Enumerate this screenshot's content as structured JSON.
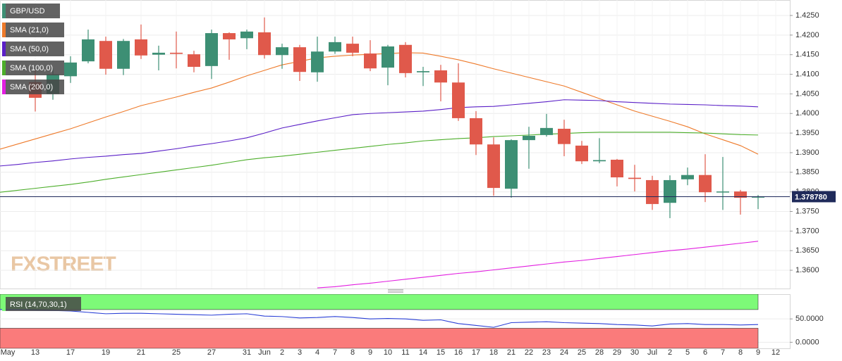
{
  "chart_data": [
    {
      "type": "candlestick",
      "title": "GBP/USD",
      "watermark": "FXSTREET",
      "categories": [
        "May",
        null,
        "13",
        null,
        "17",
        null,
        "19",
        null,
        "21",
        null,
        "25",
        null,
        "27",
        null,
        "31",
        "Jun",
        "2",
        "3",
        "4",
        "7",
        "8",
        "9",
        "10",
        "11",
        "14",
        "15",
        "16",
        "17",
        "18",
        "21",
        "22",
        "23",
        "24",
        "25",
        "28",
        "29",
        "30",
        "Jul",
        "2",
        "5",
        "6",
        "7",
        "8",
        "9",
        "12"
      ],
      "open": [
        null,
        null,
        1.408,
        1.405,
        1.4095,
        1.4133,
        1.4185,
        1.4114,
        1.4189,
        1.415,
        1.4155,
        1.4151,
        1.4121,
        1.4205,
        1.4192,
        1.4207,
        1.4149,
        1.4169,
        1.4105,
        1.4158,
        1.4178,
        1.4153,
        1.4117,
        1.4175,
        1.4105,
        1.411,
        1.4079,
        1.3988,
        1.3921,
        1.3808,
        1.3932,
        1.3945,
        1.3961,
        1.3918,
        1.3878,
        1.3882,
        1.3836,
        1.383,
        1.3772,
        1.3832,
        1.3843,
        1.3799,
        1.3801,
        1.3786,
        null
      ],
      "high": [
        null,
        null,
        1.411,
        1.4115,
        1.4146,
        1.4214,
        1.4196,
        1.419,
        1.4227,
        1.4173,
        1.4209,
        1.416,
        1.4214,
        1.4207,
        1.4214,
        1.4245,
        1.4178,
        1.4175,
        1.4196,
        1.4196,
        1.4196,
        1.4187,
        1.4175,
        1.4182,
        1.4119,
        1.4124,
        1.4128,
        1.4006,
        1.3939,
        1.3934,
        1.3966,
        1.3999,
        1.3984,
        1.393,
        1.3937,
        1.3884,
        1.3869,
        1.3841,
        1.3842,
        1.3862,
        1.3896,
        1.3889,
        1.3805,
        1.3792,
        null
      ],
      "low": [
        null,
        null,
        1.4005,
        1.4035,
        1.4078,
        1.4128,
        1.4099,
        1.4098,
        1.4139,
        1.411,
        1.4115,
        1.4105,
        1.4088,
        1.4137,
        1.4164,
        1.414,
        1.4114,
        1.4083,
        1.4081,
        1.4152,
        1.4146,
        1.4108,
        1.4072,
        1.4092,
        1.407,
        1.4031,
        1.3981,
        1.3894,
        1.379,
        1.3785,
        1.3859,
        1.3941,
        1.3891,
        1.3871,
        1.3873,
        1.3814,
        1.3801,
        1.3754,
        1.3733,
        1.3817,
        1.3774,
        1.3754,
        1.3742,
        1.3756,
        null
      ],
      "close": [
        null,
        null,
        1.404,
        1.41,
        1.413,
        1.4189,
        1.4114,
        1.4185,
        1.4148,
        1.4155,
        1.4152,
        1.4119,
        1.4205,
        1.4189,
        1.4209,
        1.4149,
        1.4169,
        1.4106,
        1.4158,
        1.4182,
        1.4155,
        1.4115,
        1.4171,
        1.4103,
        1.4108,
        1.4079,
        1.3988,
        1.3921,
        1.381,
        1.3932,
        1.3943,
        1.3963,
        1.3922,
        1.3878,
        1.3881,
        1.3837,
        1.3833,
        1.3769,
        1.383,
        1.3843,
        1.3799,
        1.3801,
        1.3785,
        1.3788,
        null
      ],
      "up_color": "#3d8f74",
      "down_color": "#e0594b",
      "legend_color": "#3d8f74",
      "series": [
        {
          "name": "SMA (21,0)",
          "color": "#ee7a2a",
          "values": [
            1.3909,
            1.3922,
            1.3935,
            1.3948,
            1.3961,
            1.3976,
            1.3991,
            1.4005,
            1.402,
            1.4031,
            1.4042,
            1.4054,
            1.4065,
            1.408,
            1.4096,
            1.411,
            1.4124,
            1.4133,
            1.4142,
            1.4146,
            1.4149,
            1.4151,
            1.4153,
            1.4155,
            1.4154,
            1.4146,
            1.4137,
            1.4126,
            1.4114,
            1.4103,
            1.4092,
            1.4081,
            1.407,
            1.4054,
            1.4038,
            1.4022,
            1.4006,
            1.3993,
            1.398,
            1.3966,
            1.3948,
            1.3933,
            1.3918,
            1.3896,
            null
          ]
        },
        {
          "name": "SMA (50,0)",
          "color": "#5a1fc7",
          "values": [
            1.3866,
            1.387,
            1.3875,
            1.3879,
            1.3884,
            1.3888,
            1.3891,
            1.3895,
            1.3898,
            1.3904,
            1.391,
            1.3917,
            1.3923,
            1.393,
            1.3938,
            1.395,
            1.3963,
            1.3972,
            1.3981,
            1.3989,
            1.3997,
            1.4,
            1.4002,
            1.4004,
            1.4006,
            1.401,
            1.4015,
            1.4017,
            1.4018,
            1.4022,
            1.4026,
            1.403,
            1.4035,
            1.4034,
            1.4033,
            1.403,
            1.4028,
            1.4026,
            1.4024,
            1.4023,
            1.4022,
            1.402,
            1.4019,
            1.4017,
            null
          ]
        },
        {
          "name": "SMA (100,0)",
          "color": "#4cae2a",
          "values": [
            1.3799,
            1.3804,
            1.3809,
            1.3814,
            1.3819,
            1.3825,
            1.3832,
            1.3838,
            1.3844,
            1.385,
            1.3856,
            1.3862,
            1.3868,
            1.3875,
            1.3882,
            1.3887,
            1.3891,
            1.3896,
            1.3901,
            1.3906,
            1.3911,
            1.3916,
            1.3921,
            1.3925,
            1.393,
            1.3933,
            1.3936,
            1.3938,
            1.3941,
            1.3943,
            1.3945,
            1.3947,
            1.3949,
            1.3951,
            1.3952,
            1.3952,
            1.3952,
            1.3952,
            1.3952,
            1.3951,
            1.395,
            1.3948,
            1.3946,
            1.3945,
            null
          ]
        },
        {
          "name": "SMA (200,0)",
          "color": "#e21ee0",
          "values": [
            null,
            null,
            null,
            null,
            null,
            null,
            null,
            null,
            null,
            null,
            null,
            null,
            null,
            null,
            null,
            null,
            null,
            null,
            1.3555,
            1.3558,
            1.3563,
            1.3567,
            1.3572,
            1.3577,
            1.3582,
            1.3587,
            1.3592,
            1.3596,
            1.3601,
            1.3606,
            1.3611,
            1.3616,
            1.3621,
            1.3625,
            1.363,
            1.3635,
            1.364,
            1.3645,
            1.365,
            1.3654,
            1.3659,
            1.3664,
            1.3669,
            1.3674,
            null
          ]
        }
      ],
      "last_price": {
        "value": 1.37878,
        "label": "1.378780"
      },
      "ylim": [
        1.35534,
        1.42895
      ],
      "yticks": [
        {
          "value": 1.425,
          "label": "1.4250"
        },
        {
          "value": 1.42,
          "label": "1.4200"
        },
        {
          "value": 1.415,
          "label": "1.4150"
        },
        {
          "value": 1.41,
          "label": "1.4100"
        },
        {
          "value": 1.405,
          "label": "1.4050"
        },
        {
          "value": 1.4,
          "label": "1.4000"
        },
        {
          "value": 1.395,
          "label": "1.3950"
        },
        {
          "value": 1.39,
          "label": "1.3900"
        },
        {
          "value": 1.385,
          "label": "1.3850"
        },
        {
          "value": 1.38,
          "label": "1.3800"
        },
        {
          "value": 1.375,
          "label": "1.3750"
        },
        {
          "value": 1.37,
          "label": "1.3700"
        },
        {
          "value": 1.365,
          "label": "1.3650"
        },
        {
          "value": 1.36,
          "label": "1.3600"
        }
      ],
      "grid": true
    },
    {
      "type": "line",
      "name": "RSI (14,70,30,1)",
      "color": "#2a3fd6",
      "values": [
        70,
        70,
        69,
        68,
        67,
        64,
        61,
        62,
        62,
        61,
        60,
        59,
        58,
        60,
        61,
        56,
        55,
        52,
        53,
        55,
        53,
        50,
        51,
        50,
        47,
        48,
        40,
        36,
        32,
        42,
        43,
        44,
        42,
        41,
        40,
        38,
        37,
        35,
        39,
        40,
        38,
        38,
        37,
        38,
        null
      ],
      "overbought": 70,
      "oversold": 30,
      "overbought_color": "#7dfa78",
      "oversold_color": "#fa7b7b",
      "ylim": [
        -13,
        103
      ],
      "yticks": [
        {
          "value": 50,
          "label": "50.0000"
        },
        {
          "value": 0,
          "label": "0.0000"
        }
      ],
      "grid": true
    }
  ]
}
